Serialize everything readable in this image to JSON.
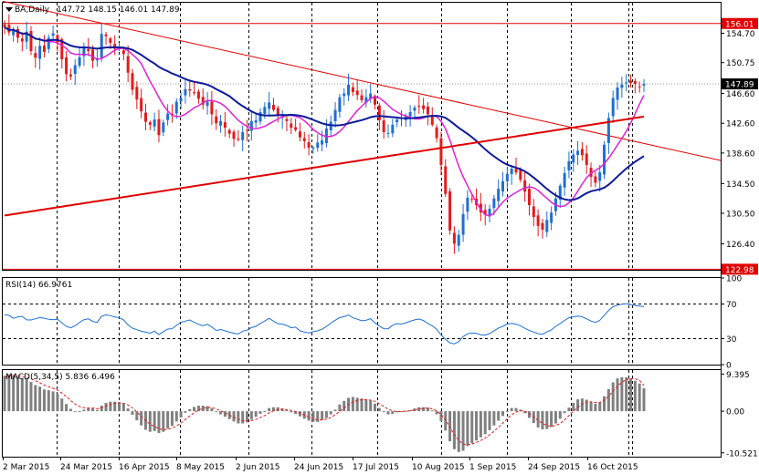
{
  "chart_data": [
    {
      "type": "candlestick",
      "title": "BA,Daily",
      "ohlc_label": "147.72 148.15 146.01 147.89",
      "ylim": [
        122.9,
        158.8
      ],
      "y_ticks": [
        "154.70",
        "150.75",
        "146.60",
        "142.60",
        "138.60",
        "134.50",
        "130.50",
        "126.40"
      ],
      "x_ticks": [
        "2 Mar 2015",
        "24 Mar 2015",
        "16 Apr 2015",
        "8 May 2015",
        "2 Jun 2015",
        "24 Jun 2015",
        "17 Jul 2015",
        "10 Aug 2015",
        "1 Sep 2015",
        "24 Sep 2015",
        "16 Oct 2015"
      ],
      "price_labels": [
        {
          "text": "156.01",
          "value": 156.01,
          "color": "#e00000"
        },
        {
          "text": "147.89",
          "value": 147.89,
          "color": "#000000"
        },
        {
          "text": "122.98",
          "value": 122.98,
          "color": "#e00000"
        }
      ],
      "horizontal_lines": [
        156.01,
        122.98
      ],
      "up_color": "#1f6fd1",
      "down_color": "#e21b1b",
      "candle_close_series": [
        155.5,
        154.8,
        155.2,
        154.1,
        153.6,
        154.9,
        152.3,
        151.4,
        153.0,
        152.2,
        154.1,
        154.7,
        153.5,
        151.2,
        149.2,
        148.9,
        150.4,
        151.5,
        152.7,
        152.3,
        151.0,
        151.3,
        154.6,
        154.3,
        153.4,
        152.6,
        152.8,
        151.9,
        149.4,
        147.1,
        145.8,
        144.2,
        142.8,
        142.4,
        143.1,
        141.0,
        142.7,
        143.9,
        143.7,
        145.5,
        146.0,
        147.2,
        147.0,
        146.7,
        145.9,
        145.1,
        145.5,
        143.8,
        142.6,
        142.9,
        142.0,
        141.2,
        140.5,
        140.4,
        141.4,
        141.6,
        142.9,
        143.0,
        144.1,
        144.8,
        145.4,
        144.4,
        143.7,
        143.5,
        142.9,
        142.0,
        141.7,
        140.7,
        140.2,
        139.3,
        139.3,
        140.0,
        140.3,
        141.9,
        142.8,
        144.4,
        146.1,
        146.6,
        147.8,
        146.8,
        146.4,
        145.7,
        146.1,
        146.6,
        145.1,
        143.0,
        141.4,
        141.3,
        142.4,
        143.1,
        143.3,
        143.5,
        144.1,
        144.7,
        144.8,
        144.5,
        143.8,
        142.4,
        140.6,
        137.0,
        133.1,
        128.2,
        126.4,
        127.6,
        130.4,
        132.6,
        132.4,
        131.6,
        130.6,
        130.3,
        131.1,
        132.5,
        133.8,
        134.8,
        135.8,
        136.5,
        136.0,
        135.0,
        133.4,
        131.6,
        130.0,
        128.8,
        128.3,
        129.6,
        130.6,
        132.5,
        134.2,
        135.9,
        137.5,
        138.4,
        138.9,
        138.3,
        137.0,
        135.4,
        134.6,
        136.0,
        139.7,
        143.3,
        146.0,
        147.4,
        147.8,
        148.1,
        148.0,
        147.9,
        147.5,
        147.89
      ]
    },
    {
      "type": "line",
      "title": "RSI(14) 66.9761",
      "ylim": [
        0,
        100
      ],
      "y_ticks": [
        "100",
        "70",
        "30",
        "0"
      ],
      "levels": [
        70,
        30
      ],
      "series": [
        {
          "color": "#1f6fd1",
          "values": [
            57.6,
            56.9,
            53.5,
            55.1,
            55.8,
            51.7,
            51.6,
            52.9,
            54.3,
            53.6,
            52.3,
            51.8,
            52.3,
            48.3,
            44.1,
            42.5,
            44.7,
            48.8,
            51.9,
            52.8,
            49.9,
            48.8,
            55.9,
            57.5,
            56.5,
            55.1,
            54.2,
            51.7,
            45.8,
            42.1,
            40.3,
            38.5,
            37.5,
            36.2,
            38.7,
            34.6,
            38.0,
            41.1,
            41.5,
            45.4,
            48.8,
            50.2,
            51.6,
            48.8,
            46.5,
            44.8,
            46.5,
            43.5,
            39.5,
            40.5,
            39.0,
            37.5,
            36.2,
            35.4,
            38.6,
            39.8,
            42.7,
            44.2,
            47.6,
            50.3,
            53.5,
            50.2,
            47.3,
            46.8,
            45.2,
            42.5,
            43.3,
            39.0,
            37.6,
            36.6,
            38.0,
            39.0,
            40.8,
            44.1,
            47.9,
            51.3,
            54.3,
            55.4,
            57.4,
            54.1,
            52.4,
            50.6,
            51.3,
            53.1,
            48.2,
            44.5,
            41.5,
            41.4,
            45.5,
            47.4,
            46.7,
            48.3,
            50.1,
            51.7,
            52.6,
            51.0,
            47.6,
            44.8,
            40.8,
            34.3,
            29.2,
            25.1,
            24.0,
            26.5,
            32.4,
            35.6,
            36.5,
            36.0,
            34.5,
            34.1,
            35.8,
            39.1,
            42.2,
            44.2,
            46.8,
            47.6,
            46.6,
            44.9,
            41.9,
            39.4,
            37.6,
            35.8,
            35.1,
            37.8,
            40.0,
            44.2,
            47.5,
            51.1,
            54.1,
            55.3,
            56.0,
            55.3,
            52.8,
            50.3,
            48.7,
            51.2,
            57.1,
            62.6,
            66.8,
            68.6,
            69.7,
            70.4,
            69.3,
            68.1,
            67.7,
            66.9761
          ]
        }
      ]
    },
    {
      "type": "bar",
      "title": "MACD(5,34,5) 5.836 6.496",
      "ylim": [
        -11.5,
        10.4
      ],
      "y_ticks": [
        "9.395",
        "0.00",
        "-10.521"
      ],
      "series": [
        {
          "name": "5.836",
          "color": "#808080",
          "values": [
            9.0,
            9.3,
            9.1,
            8.7,
            8.3,
            8.2,
            7.4,
            6.6,
            6.2,
            5.5,
            5.3,
            5.0,
            4.4,
            3.2,
            1.8,
            0.6,
            0.0,
            0.0,
            0.4,
            0.8,
            0.7,
            0.3,
            1.4,
            2.1,
            2.4,
            2.4,
            2.3,
            1.9,
            0.7,
            -0.9,
            -2.3,
            -3.6,
            -4.7,
            -5.2,
            -5.0,
            -5.5,
            -5.2,
            -4.4,
            -3.7,
            -2.6,
            -1.6,
            -0.4,
            0.5,
            1.1,
            1.4,
            1.4,
            1.3,
            0.7,
            -0.1,
            -0.8,
            -1.4,
            -2.0,
            -2.6,
            -3.1,
            -3.1,
            -2.8,
            -2.1,
            -1.4,
            -0.7,
            0.0,
            0.8,
            1.0,
            1.0,
            0.7,
            0.3,
            -0.3,
            -0.7,
            -1.3,
            -1.9,
            -2.4,
            -2.7,
            -2.7,
            -2.2,
            -1.7,
            -0.8,
            0.4,
            1.7,
            2.6,
            3.4,
            3.6,
            3.4,
            3.2,
            2.9,
            2.7,
            1.9,
            0.8,
            -0.2,
            -0.8,
            -0.7,
            -0.3,
            -0.1,
            0.1,
            0.3,
            0.7,
            1.0,
            1.0,
            0.9,
            0.2,
            -0.8,
            -2.5,
            -4.9,
            -7.6,
            -9.6,
            -10.3,
            -10.0,
            -8.8,
            -8.1,
            -7.4,
            -6.6,
            -5.8,
            -4.8,
            -3.6,
            -2.4,
            -1.2,
            0.0,
            0.8,
            0.8,
            0.4,
            -0.5,
            -1.7,
            -3.0,
            -4.1,
            -4.6,
            -4.5,
            -4.0,
            -3.1,
            -1.9,
            -0.5,
            0.9,
            2.1,
            3.0,
            3.2,
            2.9,
            2.3,
            1.9,
            2.2,
            3.8,
            5.6,
            7.3,
            8.3,
            8.6,
            8.6,
            8.3,
            7.7,
            7.0,
            5.836
          ]
        },
        {
          "name": "6.496",
          "color": "#e21b1b",
          "values": [
            8.5,
            8.9,
            9.1,
            9.0,
            8.8,
            8.6,
            8.2,
            7.7,
            7.2,
            6.6,
            6.2,
            5.8,
            5.3,
            4.6,
            3.7,
            2.7,
            1.8,
            1.2,
            0.9,
            0.8,
            0.8,
            0.6,
            0.9,
            1.3,
            1.7,
            2.0,
            2.1,
            2.0,
            1.6,
            0.8,
            -0.2,
            -1.3,
            -2.4,
            -3.3,
            -3.9,
            -4.4,
            -4.7,
            -4.6,
            -4.3,
            -3.7,
            -3.0,
            -2.1,
            -1.2,
            -0.4,
            0.3,
            0.7,
            1.0,
            0.9,
            0.6,
            0.1,
            -0.4,
            -1.0,
            -1.5,
            -2.0,
            -2.4,
            -2.5,
            -2.4,
            -2.1,
            -1.6,
            -1.1,
            -0.4,
            0.1,
            0.4,
            0.5,
            0.4,
            0.2,
            -0.1,
            -0.5,
            -1.0,
            -1.5,
            -1.9,
            -2.2,
            -2.2,
            -2.0,
            -1.6,
            -0.9,
            -0.1,
            0.8,
            1.7,
            2.3,
            2.7,
            2.9,
            2.9,
            2.8,
            2.5,
            1.9,
            1.2,
            0.5,
            0.1,
            -0.1,
            -0.1,
            0.0,
            0.1,
            0.3,
            0.6,
            0.7,
            0.8,
            0.6,
            0.1,
            -0.8,
            -2.2,
            -4.0,
            -5.9,
            -7.4,
            -8.3,
            -8.5,
            -8.3,
            -7.9,
            -7.4,
            -6.8,
            -6.0,
            -5.1,
            -4.1,
            -3.0,
            -1.9,
            -0.9,
            -0.2,
            0.1,
            -0.0,
            -0.6,
            -1.4,
            -2.3,
            -3.1,
            -3.6,
            -3.8,
            -3.6,
            -3.1,
            -2.2,
            -1.1,
            0.0,
            1.0,
            1.8,
            2.3,
            2.4,
            2.2,
            2.2,
            2.8,
            3.8,
            5.1,
            6.3,
            7.3,
            8.0,
            8.3,
            8.2,
            7.8,
            6.496
          ]
        }
      ]
    }
  ]
}
